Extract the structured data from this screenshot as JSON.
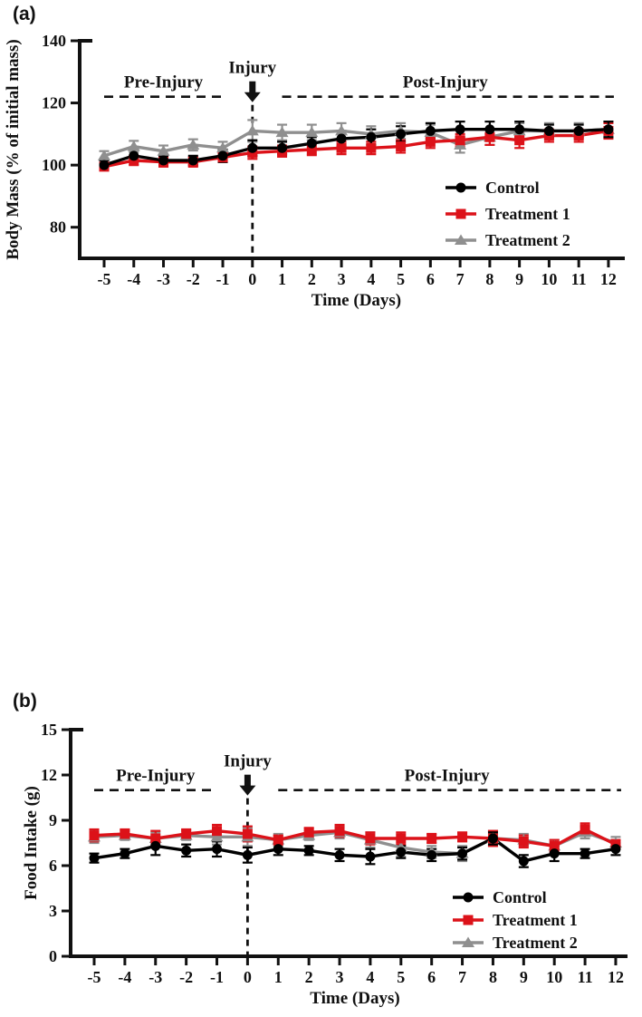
{
  "panels": [
    {
      "label": "(a)"
    },
    {
      "label": "(b)"
    }
  ],
  "chart_data": [
    {
      "type": "line",
      "title": "",
      "xlabel": "Time (Days)",
      "ylabel": "Body Mass (% of initial mass)",
      "x": [
        -5,
        -4,
        -3,
        -2,
        -1,
        0,
        1,
        2,
        3,
        4,
        5,
        6,
        7,
        8,
        9,
        10,
        11,
        12
      ],
      "ylim": [
        70,
        140
      ],
      "yticks": [
        80,
        100,
        120,
        140
      ],
      "grid": false,
      "legend_position": "inside-right-middle",
      "annotations": {
        "pre_label": "Pre-Injury",
        "post_label": "Post-Injury",
        "injury_label": "Injury",
        "guide_y": 122,
        "pre_span": [
          -5,
          -1
        ],
        "post_span": [
          1,
          12
        ],
        "injury_x": 0
      },
      "series": [
        {
          "name": "Control",
          "color": "#000000",
          "marker": "circle",
          "values": [
            100,
            103,
            101.5,
            101.5,
            103,
            105.5,
            105.5,
            107,
            108.5,
            109,
            110,
            111,
            111.5,
            111.5,
            111.5,
            111,
            111,
            111.5
          ],
          "errors": [
            1.5,
            2,
            1.5,
            1.5,
            2,
            2.5,
            2,
            2,
            2.5,
            2.5,
            2.5,
            2.5,
            2.5,
            2.5,
            2.5,
            2,
            2,
            2.5
          ]
        },
        {
          "name": "Treatment 1",
          "color": "#dc1219",
          "marker": "square",
          "values": [
            99.5,
            101.5,
            101,
            101,
            102.5,
            104,
            104.5,
            105,
            105.5,
            105.5,
            106,
            107.5,
            108,
            109,
            108,
            109.5,
            109.5,
            111
          ],
          "errors": [
            1.2,
            1.5,
            1.5,
            1.5,
            1.5,
            2,
            1.8,
            1.8,
            2,
            2,
            2,
            2,
            2,
            2.5,
            2.5,
            2,
            2,
            2.5
          ]
        },
        {
          "name": "Treatment 2",
          "color": "#8f8f8f",
          "marker": "triangle",
          "values": [
            103,
            106,
            104.5,
            106.5,
            105.5,
            111,
            110.5,
            110.5,
            111,
            110,
            111,
            110.5,
            106.5,
            109,
            111,
            111,
            111,
            111.5
          ],
          "errors": [
            1.5,
            1.8,
            1.8,
            1.8,
            2,
            3.5,
            2.5,
            2.5,
            2.5,
            2.5,
            2.5,
            2.5,
            2.5,
            2.5,
            2.5,
            2.5,
            2.5,
            2.5
          ]
        }
      ]
    },
    {
      "type": "line",
      "title": "",
      "xlabel": "Time (Days)",
      "ylabel": "Food Intake (g)",
      "x": [
        -5,
        -4,
        -3,
        -2,
        -1,
        0,
        1,
        2,
        3,
        4,
        5,
        6,
        7,
        8,
        9,
        10,
        11,
        12
      ],
      "ylim": [
        0,
        15
      ],
      "yticks": [
        0,
        3,
        6,
        9,
        12,
        15
      ],
      "grid": false,
      "legend_position": "inside-right-bottom",
      "annotations": {
        "pre_label": "Pre-Injury",
        "post_label": "Post-Injury",
        "injury_label": "Injury",
        "guide_y": 11,
        "pre_span": [
          -5,
          -1
        ],
        "post_span": [
          1,
          12
        ],
        "injury_x": 0
      },
      "series": [
        {
          "name": "Control",
          "color": "#000000",
          "marker": "circle",
          "values": [
            6.5,
            6.8,
            7.3,
            7.0,
            7.1,
            6.7,
            7.1,
            7.0,
            6.7,
            6.6,
            6.9,
            6.7,
            6.8,
            7.8,
            6.3,
            6.8,
            6.8,
            7.1
          ],
          "errors": [
            0.3,
            0.3,
            0.6,
            0.4,
            0.5,
            0.5,
            0.4,
            0.3,
            0.4,
            0.5,
            0.4,
            0.4,
            0.4,
            0.4,
            0.4,
            0.5,
            0.3,
            0.4
          ]
        },
        {
          "name": "Treatment 1",
          "color": "#dc1219",
          "marker": "square",
          "values": [
            8.0,
            8.1,
            7.8,
            8.1,
            8.3,
            8.1,
            7.7,
            8.2,
            8.3,
            7.8,
            7.8,
            7.8,
            7.9,
            7.8,
            7.6,
            7.3,
            8.4,
            7.4
          ],
          "errors": [
            0.4,
            0.3,
            0.5,
            0.3,
            0.4,
            0.5,
            0.3,
            0.3,
            0.4,
            0.4,
            0.4,
            0.3,
            0.3,
            0.5,
            0.4,
            0.4,
            0.4,
            0.3
          ]
        },
        {
          "name": "Treatment 2",
          "color": "#8f8f8f",
          "marker": "triangle",
          "values": [
            7.9,
            8.0,
            7.8,
            8.0,
            7.9,
            7.9,
            7.7,
            8.0,
            8.2,
            7.7,
            7.2,
            6.9,
            6.8,
            7.8,
            7.7,
            7.3,
            8.2,
            7.5
          ],
          "errors": [
            0.4,
            0.3,
            0.4,
            0.3,
            0.5,
            0.6,
            0.4,
            0.3,
            0.4,
            0.5,
            0.6,
            0.4,
            0.5,
            0.5,
            0.4,
            0.4,
            0.4,
            0.4
          ]
        }
      ]
    }
  ]
}
